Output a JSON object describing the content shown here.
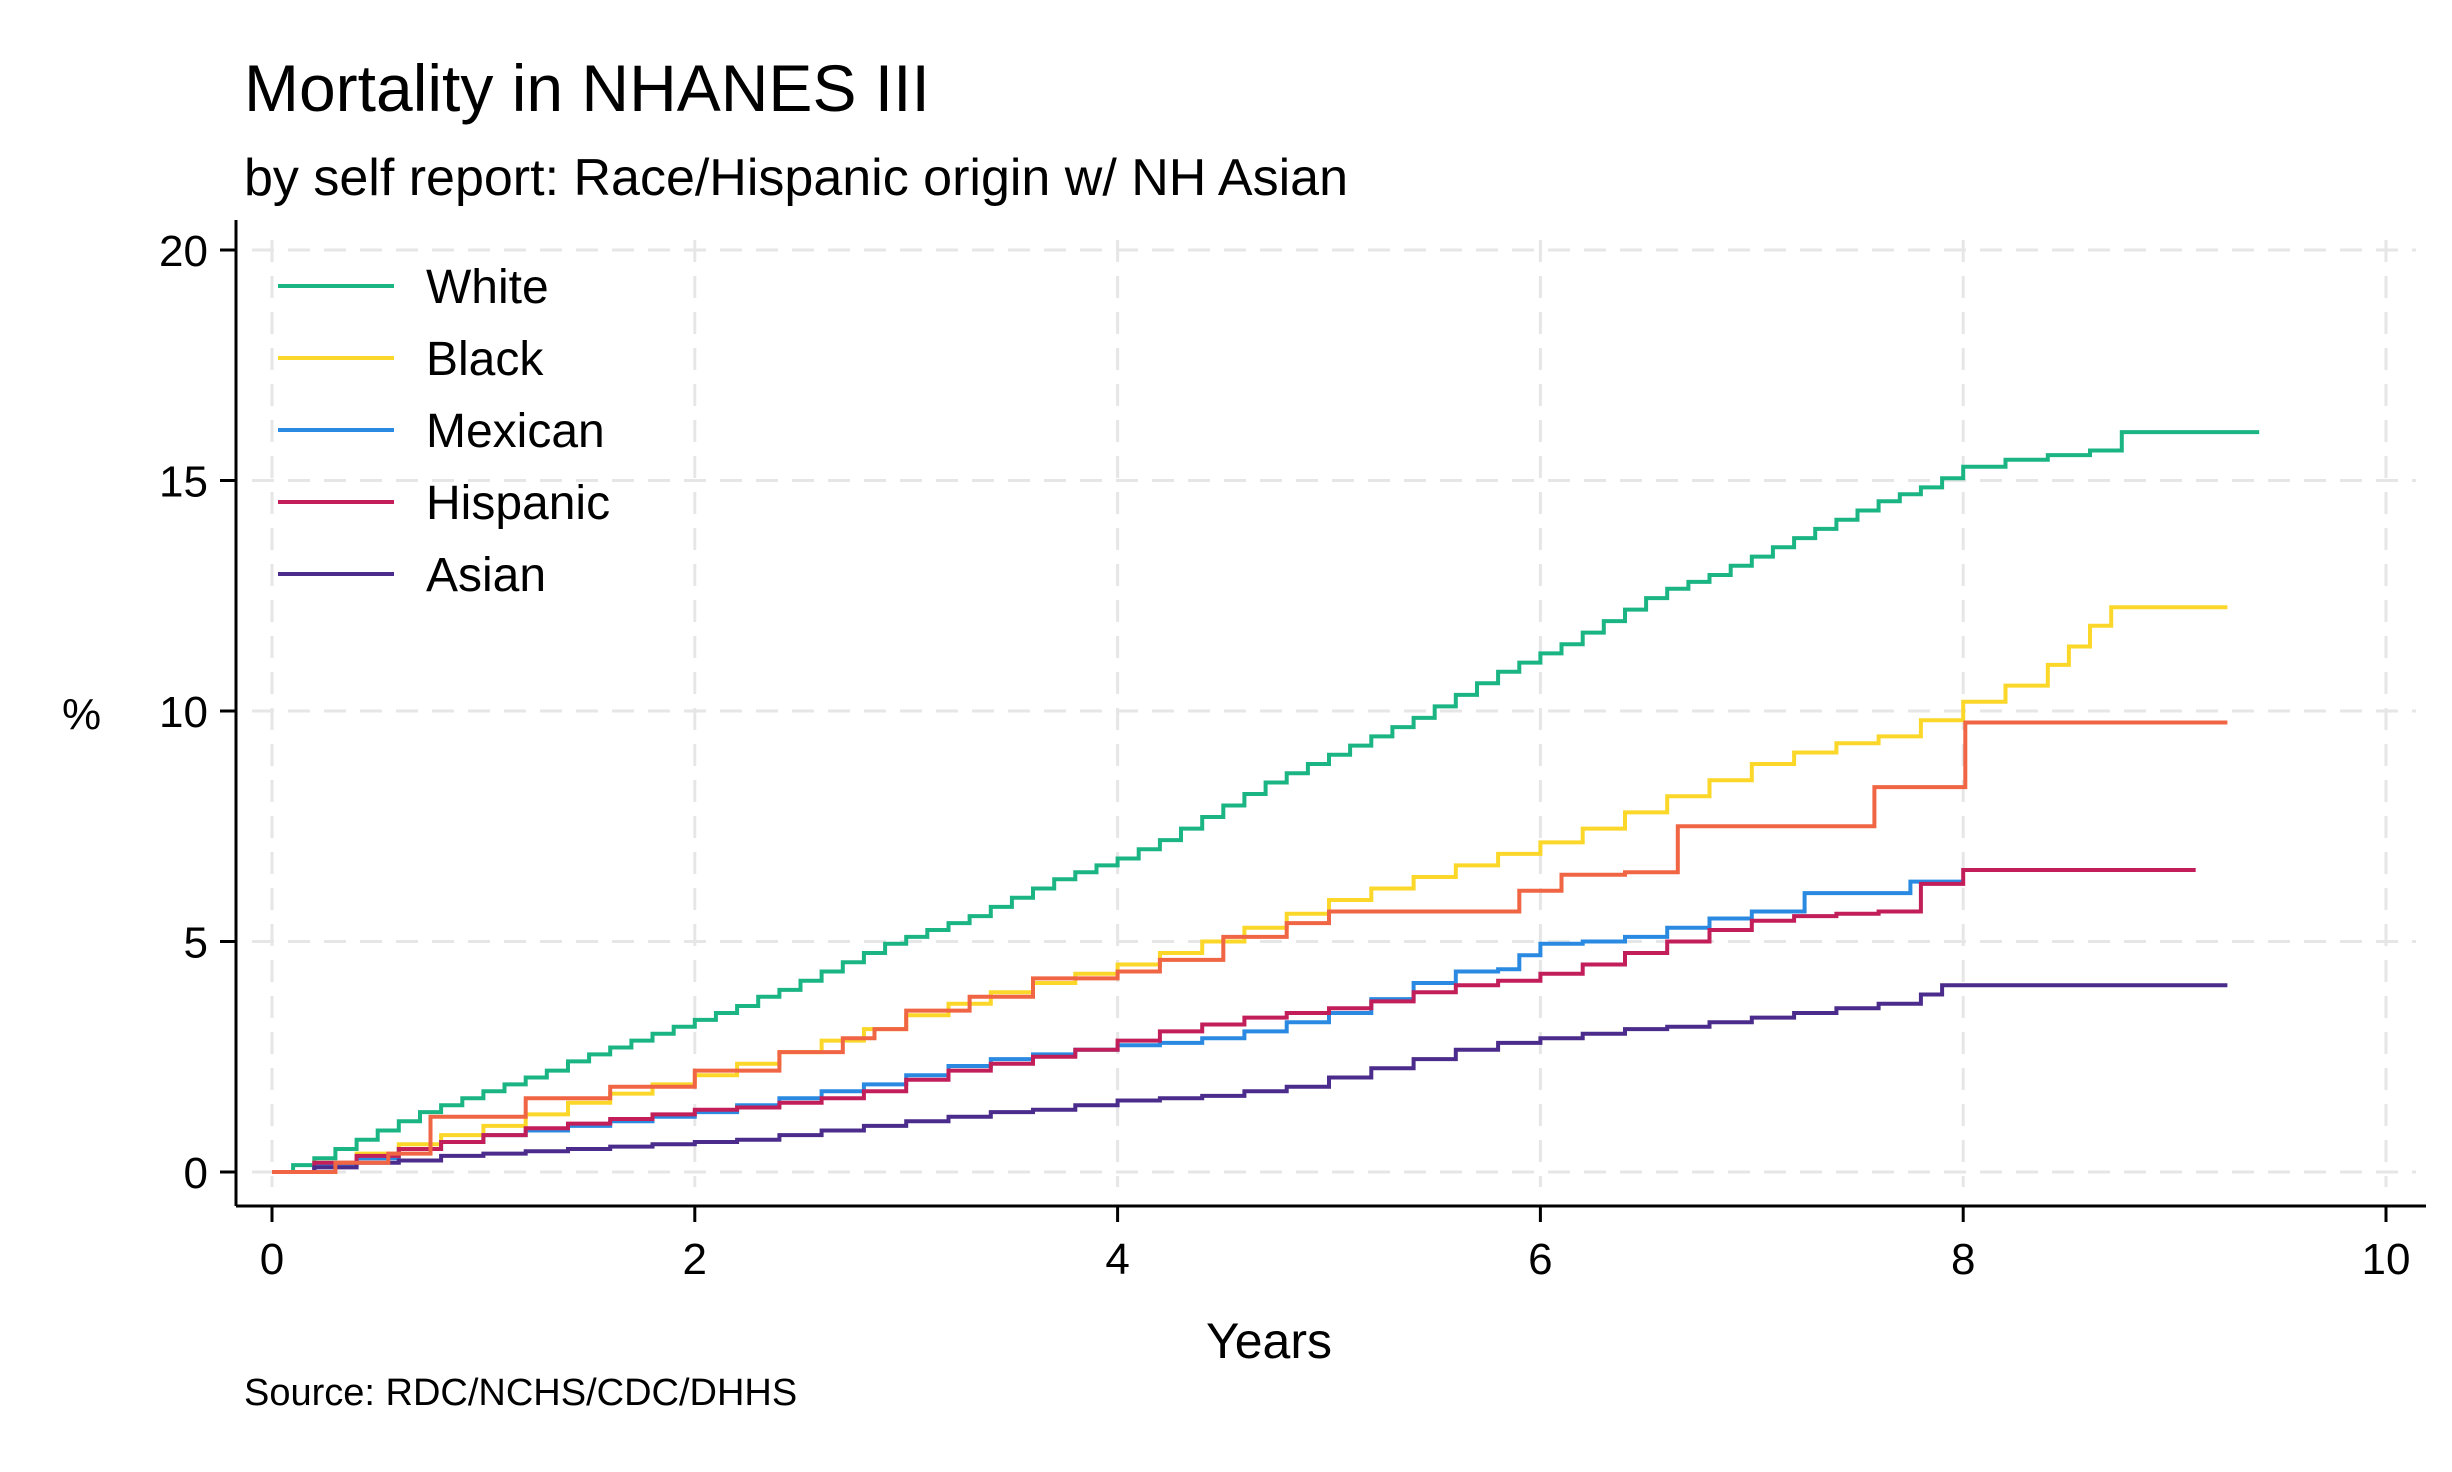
{
  "chart_data": {
    "type": "line",
    "title": "Mortality in NHANES III",
    "subtitle": "by self report: Race/Hispanic origin w/ NH Asian",
    "xlabel": "Years",
    "ylabel": "%",
    "note": "Source: RDC/NCHS/CDC/DHHS",
    "xlim": [
      0,
      10
    ],
    "ylim": [
      0,
      20
    ],
    "xticks": [
      0,
      2,
      4,
      6,
      8,
      10
    ],
    "yticks": [
      0,
      5,
      10,
      15,
      20
    ],
    "grid": true,
    "legend_position": "top-left",
    "step": true,
    "series": [
      {
        "name": "White",
        "color": "#1bb584",
        "x": [
          0,
          0.1,
          0.2,
          0.3,
          0.4,
          0.5,
          0.6,
          0.7,
          0.8,
          0.9,
          1.0,
          1.1,
          1.2,
          1.3,
          1.4,
          1.5,
          1.6,
          1.7,
          1.8,
          1.9,
          2.0,
          2.1,
          2.2,
          2.3,
          2.4,
          2.5,
          2.6,
          2.7,
          2.8,
          2.9,
          3.0,
          3.1,
          3.2,
          3.3,
          3.4,
          3.5,
          3.6,
          3.7,
          3.8,
          3.9,
          4.0,
          4.1,
          4.2,
          4.3,
          4.4,
          4.5,
          4.6,
          4.7,
          4.8,
          4.9,
          5.0,
          5.1,
          5.2,
          5.3,
          5.4,
          5.5,
          5.6,
          5.7,
          5.8,
          5.9,
          6.0,
          6.1,
          6.2,
          6.3,
          6.4,
          6.5,
          6.6,
          6.7,
          6.8,
          6.9,
          7.0,
          7.1,
          7.2,
          7.3,
          7.4,
          7.5,
          7.6,
          7.7,
          7.8,
          7.9,
          8.0,
          8.2,
          8.4,
          8.6,
          8.75,
          9.4
        ],
        "y": [
          0,
          0.15,
          0.3,
          0.5,
          0.7,
          0.9,
          1.1,
          1.3,
          1.45,
          1.6,
          1.75,
          1.9,
          2.05,
          2.2,
          2.4,
          2.55,
          2.7,
          2.85,
          3.0,
          3.15,
          3.3,
          3.45,
          3.6,
          3.8,
          3.95,
          4.15,
          4.35,
          4.55,
          4.75,
          4.95,
          5.1,
          5.25,
          5.4,
          5.55,
          5.75,
          5.95,
          6.15,
          6.35,
          6.5,
          6.65,
          6.8,
          7.0,
          7.2,
          7.45,
          7.7,
          7.95,
          8.2,
          8.45,
          8.65,
          8.85,
          9.05,
          9.25,
          9.45,
          9.65,
          9.85,
          10.1,
          10.35,
          10.6,
          10.85,
          11.05,
          11.25,
          11.45,
          11.7,
          11.95,
          12.2,
          12.45,
          12.65,
          12.8,
          12.95,
          13.15,
          13.35,
          13.55,
          13.75,
          13.95,
          14.15,
          14.35,
          14.55,
          14.7,
          14.85,
          15.05,
          15.3,
          15.45,
          15.55,
          15.65,
          16.05,
          16.05
        ]
      },
      {
        "name": "Black",
        "color": "#fbd72a",
        "x": [
          0,
          0.2,
          0.4,
          0.6,
          0.8,
          1.0,
          1.2,
          1.4,
          1.6,
          1.8,
          2.0,
          2.2,
          2.4,
          2.6,
          2.8,
          3.0,
          3.2,
          3.4,
          3.6,
          3.8,
          4.0,
          4.2,
          4.4,
          4.6,
          4.8,
          5.0,
          5.2,
          5.4,
          5.6,
          5.8,
          6.0,
          6.2,
          6.4,
          6.6,
          6.8,
          7.0,
          7.2,
          7.4,
          7.6,
          7.8,
          8.0,
          8.2,
          8.4,
          8.5,
          8.6,
          8.7,
          9.25
        ],
        "y": [
          0,
          0.2,
          0.4,
          0.6,
          0.8,
          1.0,
          1.25,
          1.5,
          1.7,
          1.9,
          2.1,
          2.35,
          2.6,
          2.85,
          3.1,
          3.4,
          3.65,
          3.9,
          4.1,
          4.3,
          4.5,
          4.75,
          5.0,
          5.3,
          5.6,
          5.9,
          6.15,
          6.4,
          6.65,
          6.9,
          7.15,
          7.45,
          7.8,
          8.15,
          8.5,
          8.85,
          9.1,
          9.3,
          9.45,
          9.8,
          10.2,
          10.55,
          11.0,
          11.4,
          11.85,
          12.25,
          12.25
        ]
      },
      {
        "name": "Mexican",
        "color": "#2a8ae2",
        "x": [
          0,
          0.2,
          0.4,
          0.6,
          0.8,
          1.0,
          1.2,
          1.4,
          1.6,
          1.8,
          2.0,
          2.2,
          2.4,
          2.6,
          2.8,
          3.0,
          3.2,
          3.4,
          3.6,
          3.8,
          4.0,
          4.2,
          4.4,
          4.6,
          4.8,
          5.0,
          5.2,
          5.4,
          5.6,
          5.8,
          5.9,
          6.0,
          6.2,
          6.4,
          6.6,
          6.8,
          7.0,
          7.25,
          7.5,
          7.75,
          8.0
        ],
        "y": [
          0,
          0.15,
          0.3,
          0.5,
          0.65,
          0.8,
          0.9,
          1.0,
          1.1,
          1.2,
          1.3,
          1.45,
          1.6,
          1.75,
          1.9,
          2.1,
          2.3,
          2.45,
          2.55,
          2.65,
          2.75,
          2.8,
          2.9,
          3.05,
          3.25,
          3.45,
          3.75,
          4.1,
          4.35,
          4.4,
          4.7,
          4.95,
          5.0,
          5.1,
          5.3,
          5.5,
          5.65,
          6.05,
          6.05,
          6.3,
          6.3
        ]
      },
      {
        "name": "Hispanic",
        "color": "#c21e5a",
        "x": [
          0,
          0.2,
          0.4,
          0.6,
          0.8,
          1.0,
          1.2,
          1.4,
          1.6,
          1.8,
          2.0,
          2.2,
          2.4,
          2.6,
          2.8,
          3.0,
          3.2,
          3.4,
          3.6,
          3.8,
          4.0,
          4.2,
          4.4,
          4.6,
          4.8,
          5.0,
          5.2,
          5.4,
          5.6,
          5.8,
          6.0,
          6.2,
          6.4,
          6.6,
          6.8,
          7.0,
          7.2,
          7.4,
          7.6,
          7.8,
          8.0,
          8.2,
          8.4,
          8.6,
          9.1
        ],
        "y": [
          0,
          0.2,
          0.35,
          0.5,
          0.65,
          0.8,
          0.95,
          1.05,
          1.15,
          1.25,
          1.35,
          1.4,
          1.5,
          1.6,
          1.75,
          2.0,
          2.2,
          2.35,
          2.5,
          2.65,
          2.85,
          3.05,
          3.2,
          3.35,
          3.45,
          3.55,
          3.7,
          3.9,
          4.05,
          4.15,
          4.3,
          4.5,
          4.75,
          5.0,
          5.25,
          5.45,
          5.55,
          5.6,
          5.65,
          6.25,
          6.55,
          6.55,
          6.55,
          6.55,
          6.55
        ]
      },
      {
        "name": "Asian",
        "color": "#4b2c8c",
        "x": [
          0,
          0.2,
          0.4,
          0.6,
          0.8,
          1.0,
          1.2,
          1.4,
          1.6,
          1.8,
          2.0,
          2.2,
          2.4,
          2.6,
          2.8,
          3.0,
          3.2,
          3.4,
          3.6,
          3.8,
          4.0,
          4.2,
          4.4,
          4.6,
          4.8,
          5.0,
          5.2,
          5.4,
          5.6,
          5.8,
          6.0,
          6.2,
          6.4,
          6.6,
          6.8,
          7.0,
          7.2,
          7.4,
          7.6,
          7.8,
          7.9,
          9.25
        ],
        "y": [
          0,
          0.1,
          0.2,
          0.25,
          0.35,
          0.4,
          0.45,
          0.5,
          0.55,
          0.6,
          0.65,
          0.7,
          0.8,
          0.9,
          1.0,
          1.1,
          1.2,
          1.3,
          1.35,
          1.45,
          1.55,
          1.6,
          1.65,
          1.75,
          1.85,
          2.05,
          2.25,
          2.45,
          2.65,
          2.8,
          2.9,
          3.0,
          3.1,
          3.15,
          3.25,
          3.35,
          3.45,
          3.55,
          3.65,
          3.85,
          4.05,
          4.05
        ]
      },
      {
        "name": "",
        "color": "#f06543",
        "x": [
          0,
          0.3,
          0.55,
          0.75,
          1.2,
          1.6,
          2.0,
          2.4,
          2.7,
          2.85,
          3.0,
          3.3,
          3.6,
          4.0,
          4.2,
          4.5,
          4.8,
          5.0,
          5.5,
          5.9,
          6.1,
          6.4,
          6.65,
          7.0,
          7.55,
          7.58,
          7.99,
          8.01,
          9.25
        ],
        "y": [
          0,
          0.2,
          0.4,
          1.2,
          1.6,
          1.85,
          2.2,
          2.6,
          2.9,
          3.1,
          3.5,
          3.8,
          4.2,
          4.35,
          4.6,
          5.1,
          5.4,
          5.65,
          5.65,
          6.1,
          6.45,
          6.5,
          7.5,
          7.5,
          7.5,
          8.35,
          8.35,
          9.75,
          9.75
        ]
      }
    ]
  }
}
